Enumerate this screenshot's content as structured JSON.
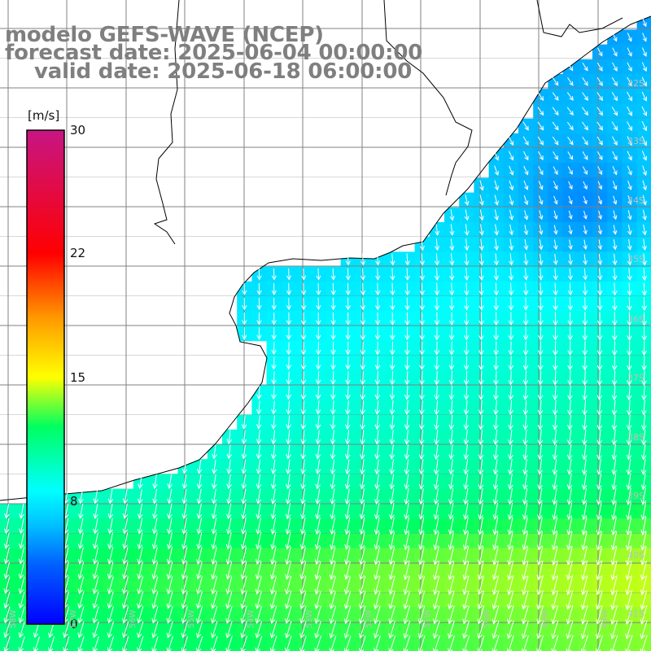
{
  "title": {
    "line1": "modelo GEFS-WAVE (NCEP)",
    "line2": "forecast date: 2025-06-04 00:00:00",
    "line3": "valid date: 2025-06-18 06:00:00"
  },
  "colorbar": {
    "unit": "[m/s]",
    "ticks": [
      {
        "value": 30,
        "label": "30"
      },
      {
        "value": 22,
        "label": "22"
      },
      {
        "value": 15,
        "label": "15"
      },
      {
        "value": 8,
        "label": "8"
      },
      {
        "value": 0,
        "label": "0"
      }
    ],
    "min": 0,
    "max": 30,
    "colors": [
      "#0000ff",
      "#0080ff",
      "#00ffff",
      "#00ff00",
      "#ffff00",
      "#ff8000",
      "#ff0000",
      "#c71585"
    ]
  },
  "map": {
    "lat_labels": [
      "32S",
      "33S",
      "34S",
      "35S",
      "36S",
      "37S",
      "38S",
      "39S",
      "40S",
      "41S"
    ],
    "lon_labels": [
      "58W",
      "57W",
      "56W",
      "55W",
      "54W",
      "53W",
      "52W",
      "51W",
      "50W",
      "49W",
      "48W"
    ],
    "land_color": "#ffffff",
    "grid_color": "#808080",
    "arrow_color": "#ffffff"
  }
}
